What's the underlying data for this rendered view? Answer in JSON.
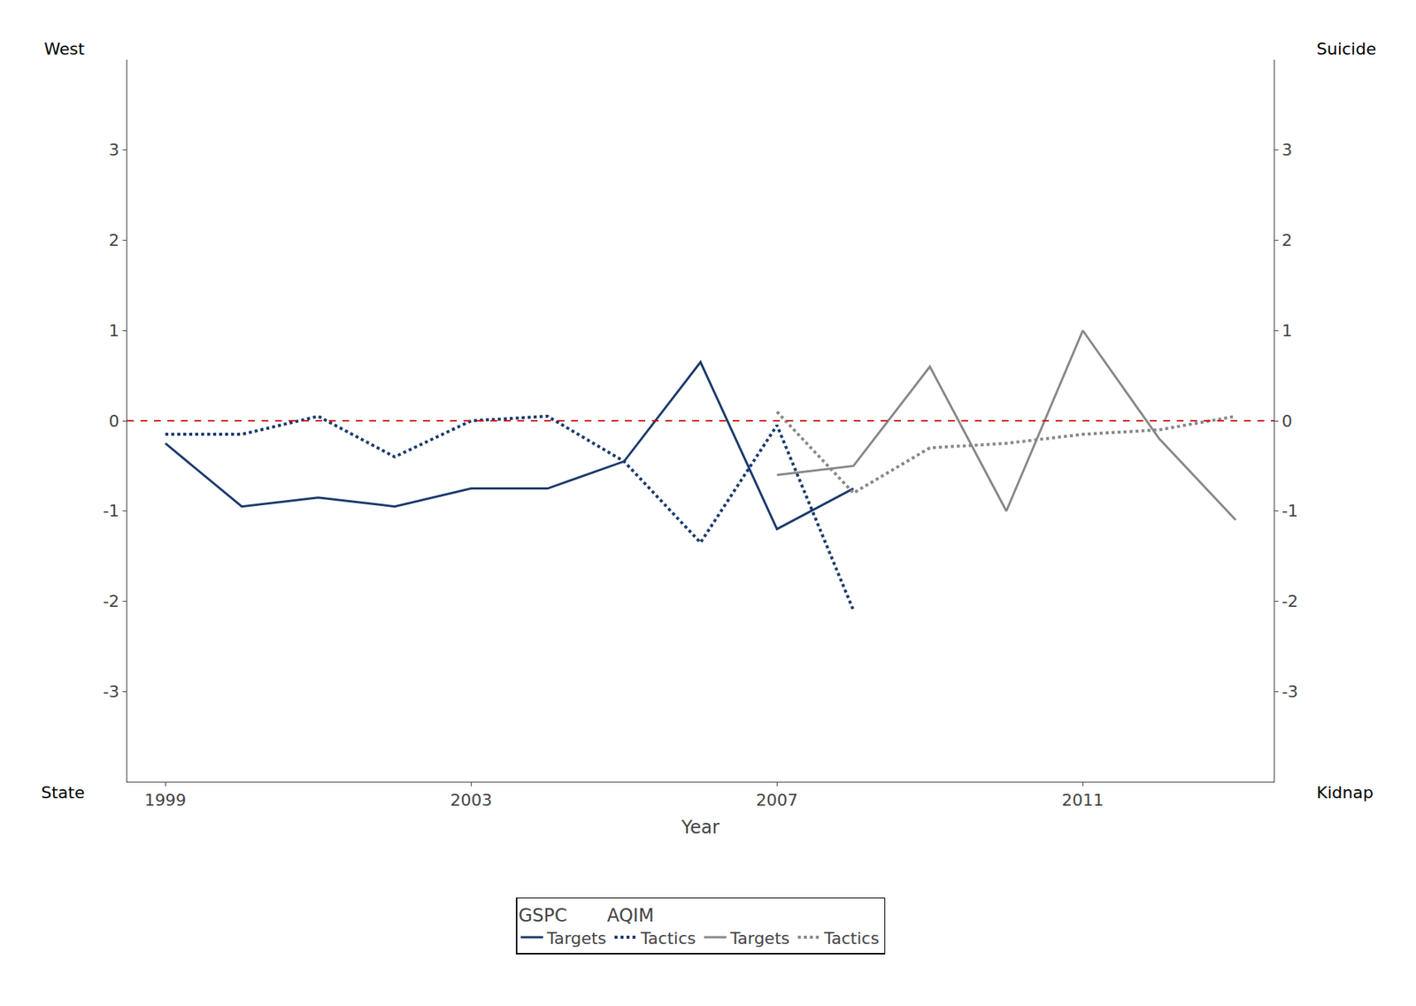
{
  "chart_data": {
    "type": "line",
    "xlabel": "Year",
    "annotations": [
      "West",
      "State",
      "Suicide",
      "Kidnap"
    ],
    "legend_title": "GSPC       AQIM",
    "series": [
      {
        "name": "Targets",
        "color": "#1a3a6b",
        "line_style": "solid",
        "x": [
          1999,
          2000,
          2001,
          2002,
          2003,
          2004,
          2005,
          2006,
          2007,
          2008
        ],
        "values": [
          -0.25,
          -0.95,
          -0.85,
          -0.95,
          -0.75,
          -0.75,
          -0.45,
          0.65,
          -1.2,
          -0.75
        ]
      },
      {
        "name": "Tactics",
        "color": "#1a3a6b",
        "line_style": "dotted",
        "x": [
          1999,
          2000,
          2001,
          2002,
          2003,
          2004,
          2005,
          2006,
          2007,
          2008
        ],
        "values": [
          -0.15,
          -0.15,
          0.05,
          -0.4,
          0.0,
          0.05,
          -0.45,
          -1.35,
          -0.05,
          -2.1
        ]
      },
      {
        "name": "Targets",
        "color": "#888888",
        "line_style": "solid",
        "x": [
          2007,
          2008,
          2009,
          2010,
          2011,
          2012,
          2013
        ],
        "values": [
          -0.6,
          -0.5,
          0.6,
          -1.0,
          1.0,
          -0.2,
          -1.1
        ]
      },
      {
        "name": "Tactics",
        "color": "#888888",
        "line_style": "dotted",
        "x": [
          2007,
          2008,
          2009,
          2010,
          2011,
          2012,
          2013
        ],
        "values": [
          0.1,
          -0.8,
          -0.3,
          -0.25,
          -0.15,
          -0.1,
          0.05
        ]
      }
    ],
    "hline": {
      "value": 0,
      "color": "#cc0000",
      "line_style": "dashed"
    },
    "xlim": [
      1998.5,
      2013.5
    ],
    "xticks": [
      1999,
      2003,
      2007,
      2011
    ],
    "ylim": [
      -4,
      4
    ],
    "yticks": [
      -3,
      -2,
      -1,
      0,
      1,
      2,
      3
    ],
    "y2lim": [
      -4,
      4
    ],
    "y2ticks": [
      -3,
      -2,
      -1,
      0,
      1,
      2,
      3
    ],
    "grid": false,
    "legend": "bottom"
  }
}
